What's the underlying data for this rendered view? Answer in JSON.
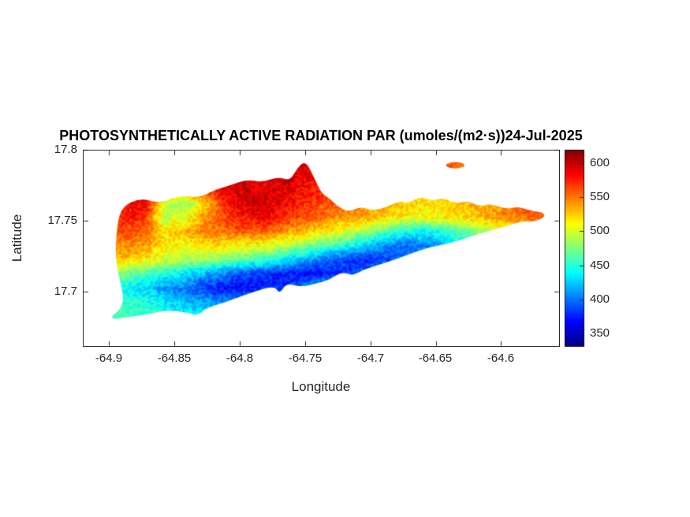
{
  "chart_data": {
    "type": "heatmap",
    "title": "PHOTOSYNTHETICALLY ACTIVE RADIATION PAR (umoles/(m2·s))24-Jul-2025",
    "xlabel": "Longitude",
    "ylabel": "Latitude",
    "xlim": [
      -64.92,
      -64.555
    ],
    "ylim": [
      17.661,
      17.8
    ],
    "xticks": [
      "-64.9",
      "-64.85",
      "-64.8",
      "-64.75",
      "-64.7",
      "-64.65",
      "-64.6"
    ],
    "yticks": [
      "17.8",
      "17.75",
      "17.7"
    ],
    "grid_lines": "off",
    "colorbar": {
      "colormap": "jet",
      "clim": [
        330,
        620
      ],
      "ticks": [
        "600",
        "550",
        "500",
        "450",
        "400",
        "350"
      ],
      "position": "right"
    },
    "grid": {
      "lon_min": -64.9025,
      "lon_step": 0.015,
      "lat_max": 17.7925,
      "lat_step": 0.01,
      "ncols": 24,
      "nrows": 13,
      "units": "umoles/(m2·s)",
      "values": [
        [
          575,
          580,
          585,
          580,
          575,
          580,
          585,
          590,
          595,
          600,
          595,
          585,
          580,
          575,
          570,
          565,
          570,
          565,
          560,
          555,
          550,
          545,
          540,
          535
        ],
        [
          570,
          575,
          585,
          580,
          570,
          585,
          595,
          590,
          585,
          605,
          590,
          580,
          575,
          570,
          560,
          555,
          560,
          555,
          550,
          545,
          540,
          535,
          530,
          525
        ],
        [
          560,
          570,
          580,
          565,
          555,
          575,
          590,
          600,
          590,
          595,
          585,
          575,
          565,
          560,
          550,
          545,
          540,
          535,
          530,
          535,
          525,
          520,
          515,
          510
        ],
        [
          555,
          585,
          590,
          500,
          480,
          520,
          570,
          595,
          600,
          585,
          575,
          565,
          555,
          545,
          535,
          525,
          520,
          515,
          530,
          535,
          540,
          550,
          560,
          570
        ],
        [
          550,
          580,
          570,
          490,
          500,
          540,
          560,
          580,
          590,
          575,
          560,
          550,
          540,
          540,
          525,
          515,
          510,
          515,
          520,
          530,
          540,
          550,
          558,
          562
        ],
        [
          545,
          560,
          555,
          520,
          530,
          545,
          550,
          560,
          555,
          545,
          530,
          520,
          505,
          490,
          470,
          450,
          440,
          445,
          460,
          480,
          495,
          505,
          515,
          520
        ],
        [
          540,
          545,
          540,
          515,
          510,
          520,
          515,
          510,
          505,
          495,
          480,
          465,
          450,
          430,
          410,
          395,
          400,
          410,
          440,
          465,
          485,
          495,
          500,
          505
        ],
        [
          520,
          525,
          515,
          500,
          490,
          485,
          475,
          465,
          455,
          440,
          420,
          400,
          385,
          375,
          380,
          395,
          410,
          430,
          455,
          470,
          480,
          485,
          490,
          495
        ],
        [
          480,
          470,
          458,
          445,
          432,
          418,
          402,
          388,
          378,
          370,
          368,
          370,
          378,
          392,
          420,
          446,
          462,
          472,
          480,
          484,
          487,
          489,
          491,
          493
        ],
        [
          445,
          440,
          430,
          410,
          398,
          385,
          372,
          368,
          372,
          385,
          405,
          432,
          452,
          462,
          470,
          476,
          480,
          482,
          484,
          486,
          488,
          490,
          491,
          492
        ],
        [
          450,
          452,
          448,
          435,
          420,
          412,
          408,
          415,
          430,
          448,
          458,
          465,
          470,
          474,
          477,
          480,
          482,
          483,
          484,
          485,
          486,
          487,
          488,
          489
        ],
        [
          460,
          458,
          455,
          450,
          445,
          442,
          445,
          452,
          460,
          466,
          470,
          474,
          477,
          479,
          481,
          482,
          483,
          484,
          485,
          486,
          487,
          488,
          489,
          490
        ],
        [
          465,
          463,
          462,
          460,
          458,
          457,
          459,
          462,
          466,
          470,
          473,
          476,
          478,
          480,
          481,
          482,
          483,
          484,
          485,
          486,
          487,
          488,
          489,
          490
        ]
      ]
    },
    "island_outline_lonlat": [
      [
        -64.9012,
        17.68
      ],
      [
        -64.888,
        17.69
      ],
      [
        -64.891,
        17.706
      ],
      [
        -64.8952,
        17.722
      ],
      [
        -64.894,
        17.747
      ],
      [
        -64.8898,
        17.76
      ],
      [
        -64.8759,
        17.766
      ],
      [
        -64.8608,
        17.762
      ],
      [
        -64.8458,
        17.768
      ],
      [
        -64.8307,
        17.766
      ],
      [
        -64.8187,
        17.772
      ],
      [
        -64.8066,
        17.775
      ],
      [
        -64.7946,
        17.779
      ],
      [
        -64.7825,
        17.777
      ],
      [
        -64.7705,
        17.781
      ],
      [
        -64.7614,
        17.778
      ],
      [
        -64.7554,
        17.788
      ],
      [
        -64.7494,
        17.792
      ],
      [
        -64.7434,
        17.781
      ],
      [
        -64.7373,
        17.769
      ],
      [
        -64.7313,
        17.766
      ],
      [
        -64.7253,
        17.76
      ],
      [
        -64.7163,
        17.756
      ],
      [
        -64.7072,
        17.76
      ],
      [
        -64.6982,
        17.757
      ],
      [
        -64.6861,
        17.76
      ],
      [
        -64.6771,
        17.764
      ],
      [
        -64.6711,
        17.762
      ],
      [
        -64.662,
        17.767
      ],
      [
        -64.653,
        17.764
      ],
      [
        -64.644,
        17.766
      ],
      [
        -64.6349,
        17.762
      ],
      [
        -64.6259,
        17.764
      ],
      [
        -64.6169,
        17.76
      ],
      [
        -64.6078,
        17.762
      ],
      [
        -64.5958,
        17.758
      ],
      [
        -64.5867,
        17.76
      ],
      [
        -64.5777,
        17.757
      ],
      [
        -64.5687,
        17.756
      ],
      [
        -64.5657,
        17.753
      ],
      [
        -64.5747,
        17.749
      ],
      [
        -64.5837,
        17.75
      ],
      [
        -64.5958,
        17.746
      ],
      [
        -64.6078,
        17.743
      ],
      [
        -64.6199,
        17.74
      ],
      [
        -64.6319,
        17.736
      ],
      [
        -64.644,
        17.733
      ],
      [
        -64.656,
        17.731
      ],
      [
        -64.6681,
        17.727
      ],
      [
        -64.6801,
        17.723
      ],
      [
        -64.6922,
        17.719
      ],
      [
        -64.7042,
        17.716
      ],
      [
        -64.7133,
        17.711
      ],
      [
        -64.7223,
        17.714
      ],
      [
        -64.7313,
        17.708
      ],
      [
        -64.7404,
        17.706
      ],
      [
        -64.7524,
        17.703
      ],
      [
        -64.7645,
        17.706
      ],
      [
        -64.7693,
        17.698
      ],
      [
        -64.7735,
        17.704
      ],
      [
        -64.7886,
        17.7
      ],
      [
        -64.8006,
        17.696
      ],
      [
        -64.8127,
        17.692
      ],
      [
        -64.8259,
        17.688
      ],
      [
        -64.8319,
        17.683
      ],
      [
        -64.8398,
        17.685
      ],
      [
        -64.8548,
        17.687
      ],
      [
        -64.8699,
        17.684
      ],
      [
        -64.8849,
        17.682
      ]
    ],
    "islet_ellipse": {
      "lon": -64.635,
      "lat": 17.789,
      "rlon": 0.007,
      "rlat": 0.0022
    }
  }
}
